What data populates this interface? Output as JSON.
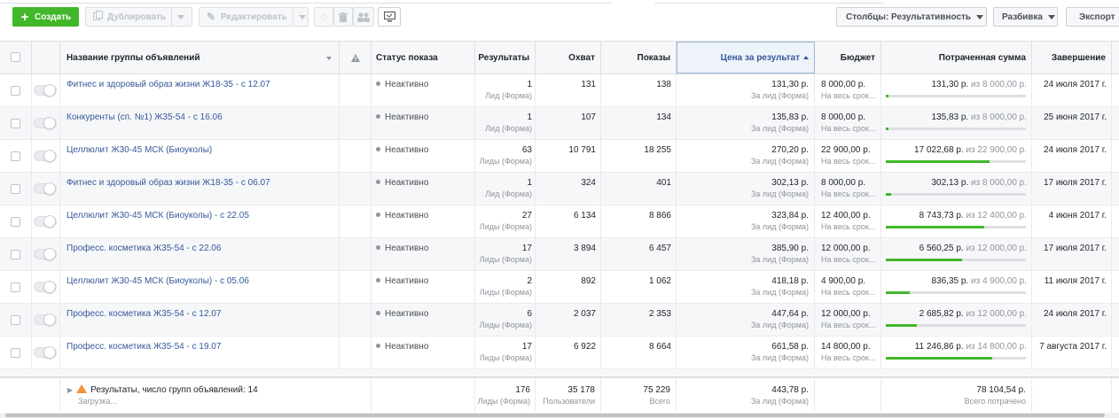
{
  "toolbar": {
    "create_label": "Создать",
    "duplicate_label": "Дублировать",
    "edit_label": "Редактировать",
    "columns_label": "Столбцы: Результативность",
    "breakdown_label": "Разбивка",
    "export_label": "Экспорт"
  },
  "headers": {
    "name": "Название группы объявлений",
    "status": "Статус показа",
    "results": "Результаты",
    "reach": "Охват",
    "impressions": "Показы",
    "cost": "Цена за результат",
    "budget": "Бюджет",
    "spent": "Потраченная сумма",
    "end": "Завершение"
  },
  "colors": {
    "accent": "#365899",
    "green": "#42b72a",
    "warning": "#f7923b"
  },
  "rows": [
    {
      "name": "Фитнес и здоровый образ жизни Ж18-35 - с 12.07",
      "status": "Неактивно",
      "results": "1",
      "results_type": "Лид (Форма)",
      "reach": "131",
      "impressions": "138",
      "cost": "131,30 р.",
      "cost_type": "За лид (Форма)",
      "budget": "8 000,00 р.",
      "budget_type": "На весь срок...",
      "spent": "131,30 р.",
      "spent_of": "из 8 000,00 р.",
      "spent_fraction": 0.016,
      "end": "24 июля 2017 г."
    },
    {
      "name": "Конкуренты (сп. №1) Ж35-54 - с 16.06",
      "status": "Неактивно",
      "results": "1",
      "results_type": "Лид (Форма)",
      "reach": "107",
      "impressions": "134",
      "cost": "135,83 р.",
      "cost_type": "За лид (Форма)",
      "budget": "8 000,00 р.",
      "budget_type": "На весь срок...",
      "spent": "135,83 р.",
      "spent_of": "из 8 000,00 р.",
      "spent_fraction": 0.017,
      "end": "25 июня 2017 г."
    },
    {
      "name": "Целлюлит Ж30-45 МСК (Биоуколы)",
      "status": "Неактивно",
      "results": "63",
      "results_type": "Лиды (Форма)",
      "reach": "10 791",
      "impressions": "18 255",
      "cost": "270,20 р.",
      "cost_type": "За лид (Форма)",
      "budget": "22 900,00 р.",
      "budget_type": "На весь срок...",
      "spent": "17 022,68 р.",
      "spent_of": "из 22 900,00 р.",
      "spent_fraction": 0.743,
      "end": "24 июля 2017 г."
    },
    {
      "name": "Фитнес и здоровый образ жизни Ж18-35 - с 06.07",
      "status": "Неактивно",
      "results": "1",
      "results_type": "Лид (Форма)",
      "reach": "324",
      "impressions": "401",
      "cost": "302,13 р.",
      "cost_type": "За лид (Форма)",
      "budget": "8 000,00 р.",
      "budget_type": "На весь срок...",
      "spent": "302,13 р.",
      "spent_of": "из 8 000,00 р.",
      "spent_fraction": 0.038,
      "end": "17 июля 2017 г."
    },
    {
      "name": "Целлюлит Ж30-45 МСК (Биоуколы) - с 22.05",
      "status": "Неактивно",
      "results": "27",
      "results_type": "Лиды (Форма)",
      "reach": "6 134",
      "impressions": "8 866",
      "cost": "323,84 р.",
      "cost_type": "За лид (Форма)",
      "budget": "12 400,00 р.",
      "budget_type": "На весь срок...",
      "spent": "8 743,73 р.",
      "spent_of": "из 12 400,00 р.",
      "spent_fraction": 0.705,
      "end": "4 июня 2017 г."
    },
    {
      "name": "Професс. косметика Ж35-54 - с 22.06",
      "status": "Неактивно",
      "results": "17",
      "results_type": "Лиды (Форма)",
      "reach": "3 894",
      "impressions": "6 457",
      "cost": "385,90 р.",
      "cost_type": "За лид (Форма)",
      "budget": "12 000,00 р.",
      "budget_type": "На весь срок...",
      "spent": "6 560,25 р.",
      "spent_of": "из 12 000,00 р.",
      "spent_fraction": 0.547,
      "end": "17 июля 2017 г."
    },
    {
      "name": "Целлюлит Ж30-45 МСК (Биоуколы) - с 05.06",
      "status": "Неактивно",
      "results": "2",
      "results_type": "Лиды (Форма)",
      "reach": "892",
      "impressions": "1 062",
      "cost": "418,18 р.",
      "cost_type": "За лид (Форма)",
      "budget": "4 900,00 р.",
      "budget_type": "На весь срок...",
      "spent": "836,35 р.",
      "spent_of": "из 4 900,00 р.",
      "spent_fraction": 0.171,
      "end": "11 июля 2017 г."
    },
    {
      "name": "Професс. косметика Ж35-54 - с 12.07",
      "status": "Неактивно",
      "results": "6",
      "results_type": "Лиды (Форма)",
      "reach": "2 037",
      "impressions": "2 353",
      "cost": "447,64 р.",
      "cost_type": "За лид (Форма)",
      "budget": "12 000,00 р.",
      "budget_type": "На весь срок...",
      "spent": "2 685,82 р.",
      "spent_of": "из 12 000,00 р.",
      "spent_fraction": 0.224,
      "end": "24 июля 2017 г."
    },
    {
      "name": "Професс. косметика Ж35-54 - с 19.07",
      "status": "Неактивно",
      "results": "17",
      "results_type": "Лиды (Форма)",
      "reach": "6 922",
      "impressions": "8 664",
      "cost": "661,58 р.",
      "cost_type": "За лид (Форма)",
      "budget": "14 800,00 р.",
      "budget_type": "На весь срок...",
      "spent": "11 246,86 р.",
      "spent_of": "из 14 800,00 р.",
      "spent_fraction": 0.76,
      "end": "7 августа 2017 г."
    }
  ],
  "footer": {
    "summary": "Результаты, число групп объявлений: 14",
    "loading": "Загрузка...",
    "results": "176",
    "results_type": "Лиды (Форма)",
    "reach": "35 178",
    "reach_type": "Пользователи",
    "impressions": "75 229",
    "impressions_type": "Всего",
    "cost": "443,78 р.",
    "cost_type": "За лид (Форма)",
    "spent": "78 104,54 р.",
    "spent_type": "Всего потрачено"
  }
}
